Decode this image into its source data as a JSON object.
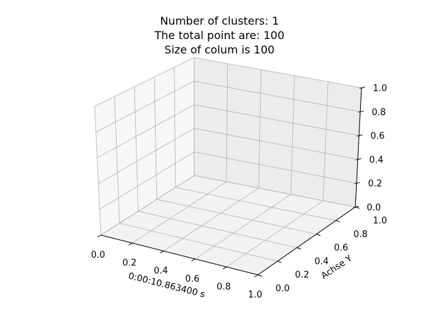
{
  "chart_data": {
    "type": "scatter",
    "projection": "3d",
    "title_lines": [
      "Number of clusters: 1",
      "The total point are: 100",
      "Size of colum is 100"
    ],
    "xlabel": "0:00:10.863400 s",
    "ylabel": "Achse Y",
    "zlabel": "",
    "xlim": [
      0,
      1
    ],
    "ylim": [
      0,
      1
    ],
    "zlim": [
      0,
      1
    ],
    "x_ticks": [
      "0.0",
      "0.2",
      "0.4",
      "0.6",
      "0.8",
      "1.0"
    ],
    "y_ticks": [
      "0.0",
      "0.2",
      "0.4",
      "0.6",
      "0.8",
      "1.0"
    ],
    "z_ticks": [
      "0.0",
      "0.2",
      "0.4",
      "0.6",
      "0.8",
      "1.0"
    ],
    "grid": true,
    "series": []
  },
  "colors": {
    "pane_bottom": "#f2f2f2",
    "pane_left": "#f7f7f7",
    "pane_back": "#ececec",
    "grid": "#b0b0b0"
  }
}
